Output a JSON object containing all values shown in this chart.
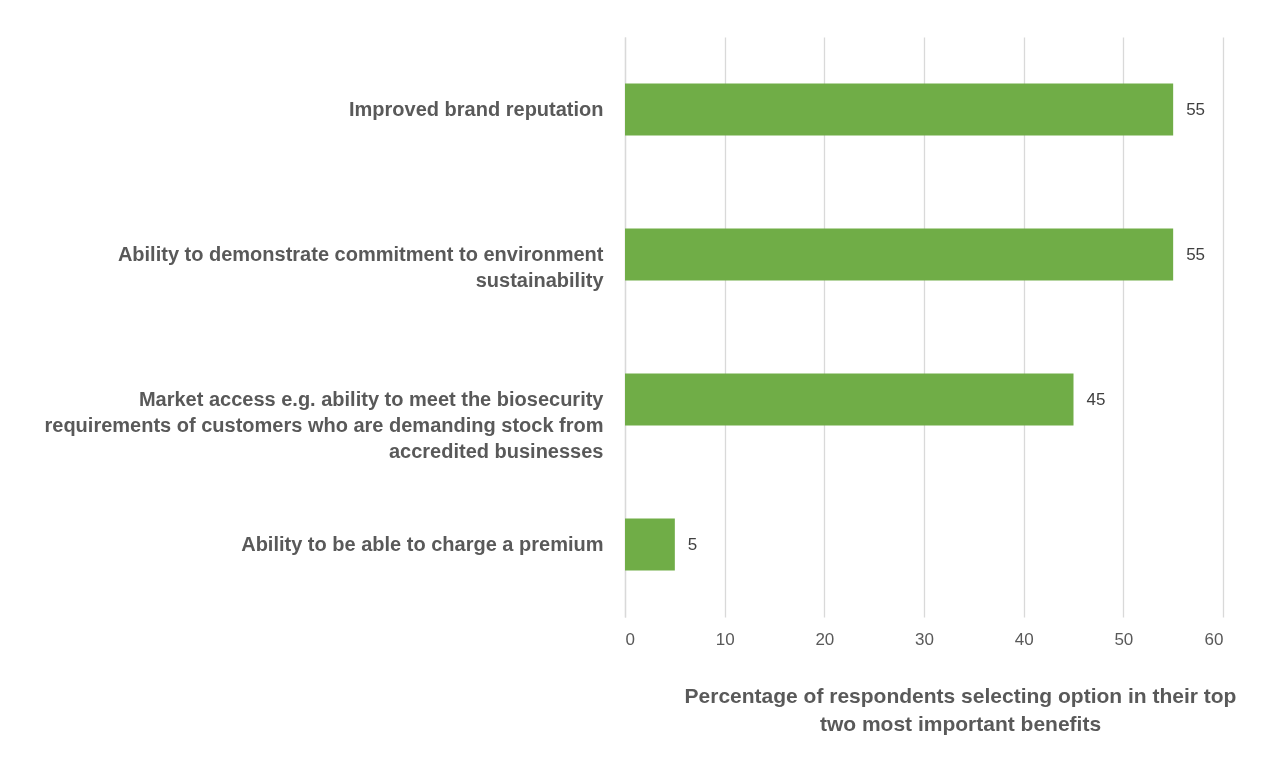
{
  "chart_data": {
    "type": "bar",
    "orientation": "horizontal",
    "categories": [
      "Improved brand reputation",
      "Ability to demonstrate commitment to environment sustainability",
      "Market access e.g. ability to meet the biosecurity requirements of customers who are demanding stock from accredited businesses",
      "Ability to be able to charge a premium"
    ],
    "values": [
      55,
      55,
      45,
      5
    ],
    "color": "#70ad47",
    "xlim": [
      0,
      60
    ],
    "xticks": [
      0,
      10,
      20,
      30,
      40,
      50,
      60
    ],
    "xlabel": "Percentage of respondents selecting option in their top two most important benefits",
    "grid": "x",
    "data_labels": true
  }
}
